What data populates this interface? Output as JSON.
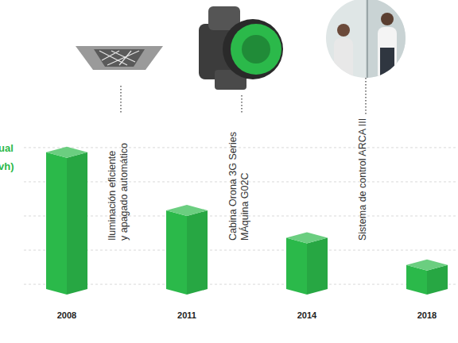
{
  "chart_data": {
    "type": "bar",
    "ylabel": [
      "ual",
      "vh)"
    ],
    "categories": [
      "2008",
      "2011",
      "2014",
      "2018"
    ],
    "values": [
      4.0,
      2.3,
      1.5,
      0.7
    ],
    "color": "#2bb94a",
    "ylim": [
      0,
      4.6
    ],
    "yticks": [
      0.3,
      1.3,
      2.3,
      3.3,
      4.3
    ],
    "grid": true,
    "tick_labels": "x",
    "annotations": [
      {
        "lines": [
          "Iluminación eficiente",
          "y apagado automático"
        ]
      },
      {
        "lines": [
          "Cabina Orona 3G Series",
          "MÁquina G02C"
        ]
      },
      {
        "lines": [
          "Sistema de control ARCA III"
        ]
      }
    ]
  }
}
